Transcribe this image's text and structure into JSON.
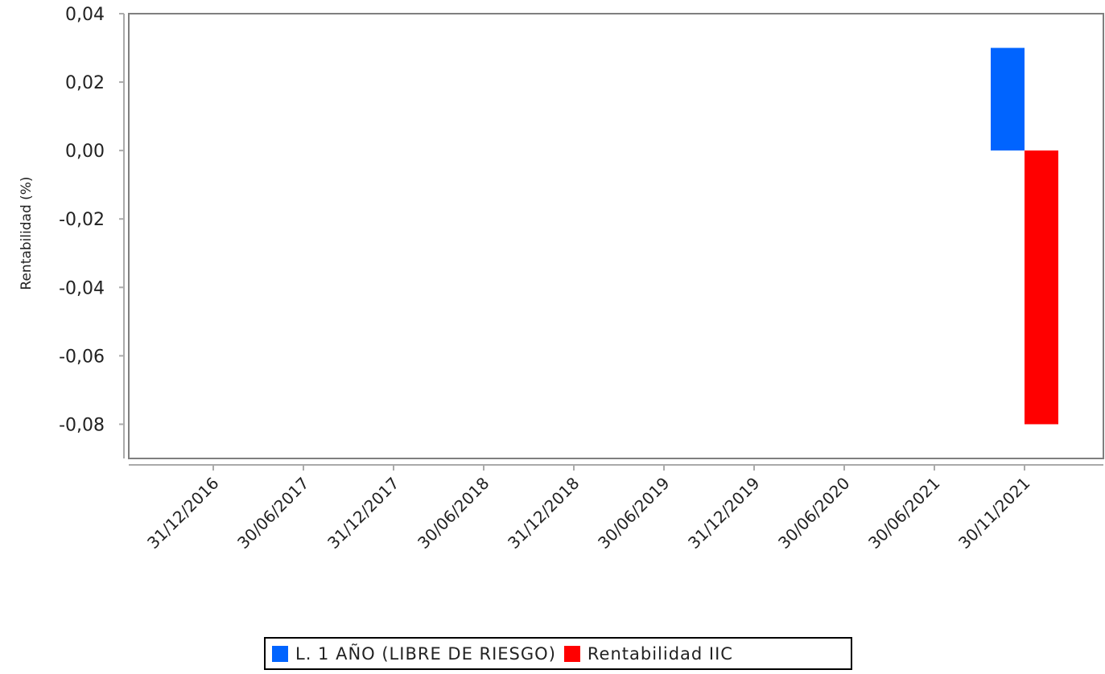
{
  "chart_data": {
    "type": "bar",
    "ylabel": "Rentabilidad (%)",
    "xlabel": "",
    "categories": [
      "31/12/2016",
      "30/06/2017",
      "31/12/2017",
      "30/06/2018",
      "31/12/2018",
      "30/06/2019",
      "31/12/2019",
      "30/06/2020",
      "30/06/2021",
      "30/11/2021"
    ],
    "y_ticks": [
      "0,04",
      "0,02",
      "0,00",
      "-0,02",
      "-0,04",
      "-0,06",
      "-0,08"
    ],
    "ylim": [
      -0.09,
      0.04
    ],
    "grid": false,
    "legend_position": "bottom",
    "series": [
      {
        "name": "L. 1 AÑO (LIBRE DE RIESGO)",
        "color": "#0064ff",
        "values": [
          null,
          null,
          null,
          null,
          null,
          null,
          null,
          null,
          null,
          0.03
        ]
      },
      {
        "name": "Rentabilidad IIC",
        "color": "#ff0000",
        "values": [
          null,
          null,
          null,
          null,
          null,
          null,
          null,
          null,
          null,
          -0.08
        ]
      }
    ]
  }
}
